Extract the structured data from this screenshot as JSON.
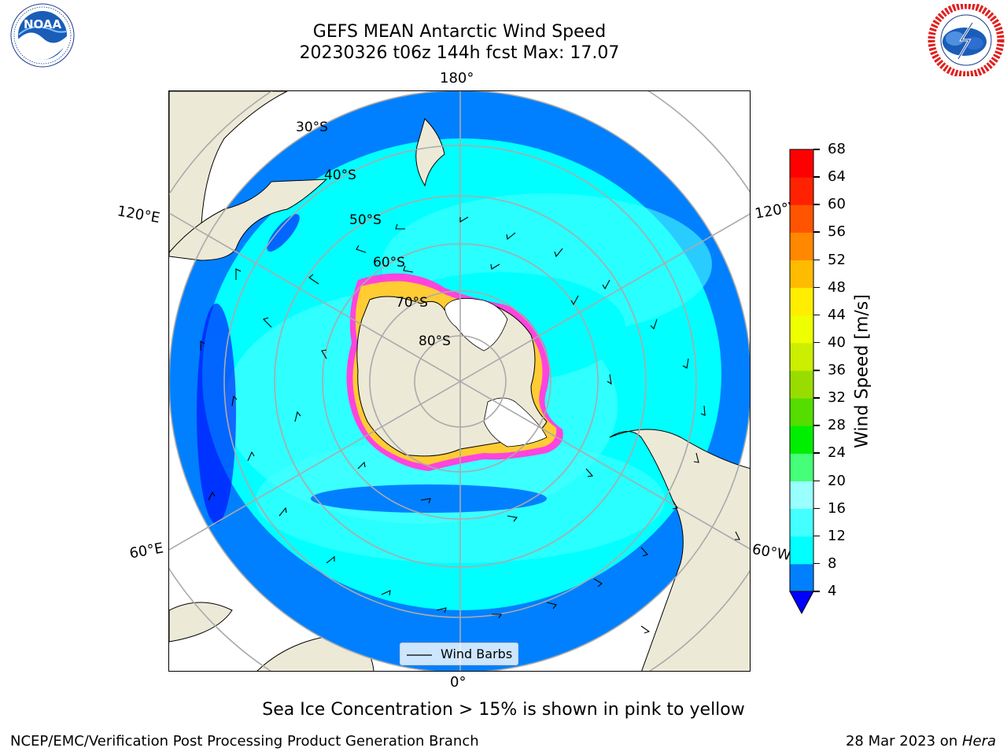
{
  "title": {
    "line1": "GEFS MEAN Antarctic Wind Speed",
    "line2": "20230326 t06z 144h fcst   Max: 17.07"
  },
  "logos": {
    "left": {
      "icon": "noaa-logo",
      "text": "NOAA",
      "ring_text": "NATIONAL OCEANIC AND ATMOSPHERIC ADMINISTRATION · U.S. DEPARTMENT OF COMMERCE"
    },
    "right": {
      "icon": "nws-logo",
      "ring_text": "NATIONAL WEATHER SERVICE"
    }
  },
  "map": {
    "projection": "south-polar-stereographic",
    "lon_labels": {
      "top": "180°",
      "bottom": "0°",
      "upper_left": "120°E",
      "lower_left": "60°E",
      "upper_right": "120°W",
      "lower_right": "60°W"
    },
    "lat_labels": [
      "30°S",
      "40°S",
      "50°S",
      "60°S",
      "70°S",
      "80°S"
    ],
    "legend_label": "Wind Barbs",
    "colors": {
      "land": "#ece9d7",
      "ice": "#ffffff",
      "sea_ice_edge": "#ff44dd"
    }
  },
  "colorbar": {
    "label": "Wind Speed [m/s]",
    "ticks": [
      "4",
      "8",
      "12",
      "16",
      "20",
      "24",
      "28",
      "32",
      "36",
      "40",
      "44",
      "48",
      "52",
      "56",
      "60",
      "64",
      "68"
    ],
    "colors": [
      "#0080ff",
      "#00ffff",
      "#44ffff",
      "#99ffff",
      "#44ff77",
      "#00ee00",
      "#55dd00",
      "#99dd00",
      "#ccee00",
      "#eeff00",
      "#ffee00",
      "#ffbb00",
      "#ff8800",
      "#ff5500",
      "#ff2200",
      "#ff0000"
    ],
    "extend_color": "#0000ff"
  },
  "caption": "Sea Ice Concentration > 15% is shown in pink to yellow",
  "footer": {
    "left": "NCEP/EMC/Verification Post Processing Product Generation Branch",
    "right_prefix": "28 Mar 2023 on ",
    "right_host": "Hera"
  }
}
